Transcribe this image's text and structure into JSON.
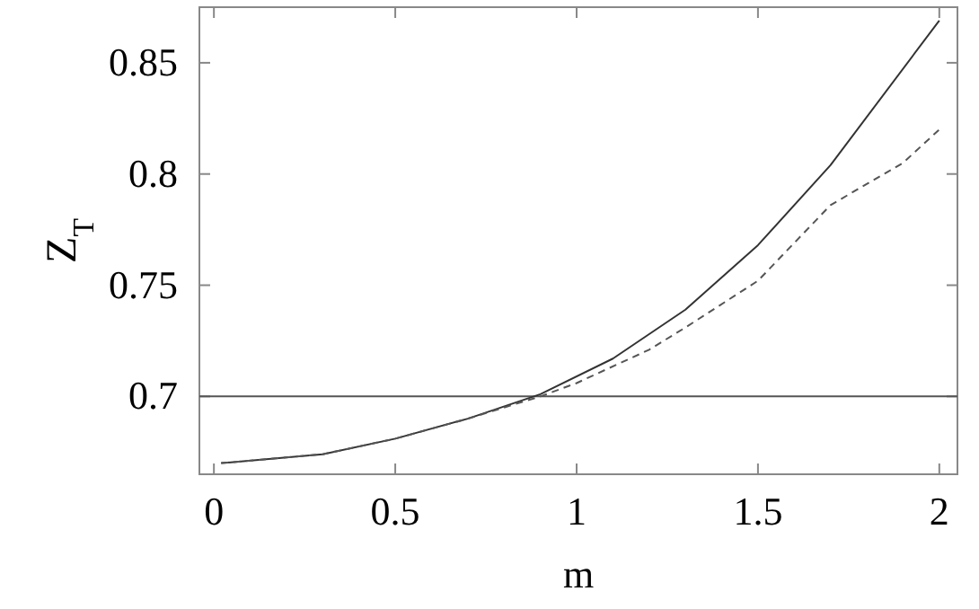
{
  "chart_data": {
    "type": "line",
    "xlabel": "m",
    "ylabel": "Z$_{T}$",
    "xlim": [
      -0.04,
      2.05
    ],
    "ylim": [
      0.665,
      0.875
    ],
    "xticks": [
      0,
      0.5,
      1,
      1.5,
      2
    ],
    "yticks": [
      0.7,
      0.75,
      0.8,
      0.85
    ],
    "ref_lines": [
      {
        "axis": "y",
        "value": 0.7,
        "color": "#555555"
      }
    ],
    "series": [
      {
        "color": "#333333",
        "line_style": "solid",
        "x": [
          0.02,
          0.3,
          0.5,
          0.7,
          0.9,
          1.1,
          1.3,
          1.5,
          1.7,
          2.0
        ],
        "values": [
          0.67,
          0.674,
          0.681,
          0.69,
          0.701,
          0.717,
          0.739,
          0.768,
          0.804,
          0.869
        ]
      },
      {
        "color": "#555555",
        "line_style": "dashed",
        "x": [
          0.02,
          0.3,
          0.5,
          0.7,
          0.9,
          1.0,
          1.2,
          1.3,
          1.5,
          1.7,
          1.9,
          2.0
        ],
        "values": [
          0.67,
          0.674,
          0.681,
          0.69,
          0.7,
          0.706,
          0.721,
          0.731,
          0.752,
          0.786,
          0.805,
          0.82
        ]
      }
    ]
  }
}
